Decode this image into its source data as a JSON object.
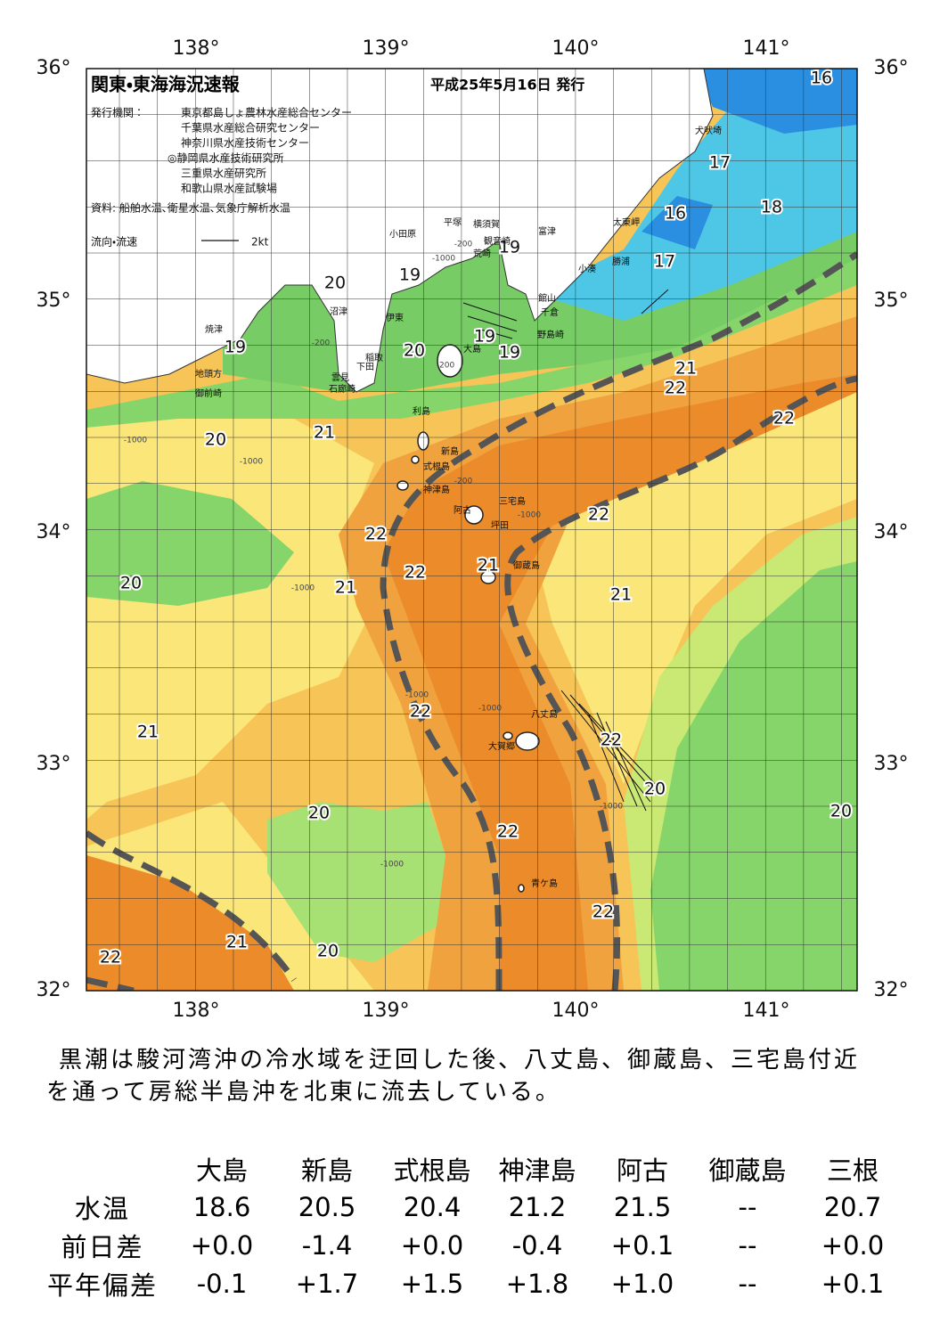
{
  "map": {
    "title": "関東・東海海況速報",
    "date": "平成25年5月16日 発行",
    "publisher_label": "発行機関：",
    "publishers": [
      "東京都島しょ農林水産総合センター",
      "千葉県水産総合研究センター",
      "神奈川県水産技術センター",
      "◎静岡県水産技術研究所",
      "三重県水産研究所",
      "和歌山県水産試験場"
    ],
    "source": "資料: 船舶水温､衛星水温､気象庁解析水温",
    "legend_label": "流向・流速",
    "legend_scale": "2kt",
    "lat_labels": [
      "36°",
      "35°",
      "34°",
      "33°",
      "32°"
    ],
    "lon_labels": [
      "138°",
      "139°",
      "140°",
      "141°"
    ],
    "temperature_labels": [
      "16",
      "17",
      "16",
      "18",
      "17",
      "19",
      "19",
      "20",
      "19",
      "20",
      "19",
      "19",
      "21",
      "22",
      "22",
      "21",
      "20",
      "22",
      "22",
      "22",
      "21",
      "21",
      "20",
      "21",
      "22",
      "21",
      "22",
      "20",
      "20",
      "20",
      "22",
      "22",
      "21",
      "22",
      "20"
    ],
    "depth_labels": [
      "-200",
      "-200",
      "-1000",
      "-200",
      "-1000",
      "-1000",
      "-200",
      "-1000",
      "-1000",
      "-1000",
      "-1000",
      "-1000",
      "-1000"
    ],
    "place_names": [
      "犬吠埼",
      "太東岬",
      "勝浦",
      "小湊",
      "富津",
      "平塚",
      "横須賀",
      "小田原",
      "観音崎",
      "荒崎",
      "館山",
      "千倉",
      "野島崎",
      "沼津",
      "伊東",
      "焼津",
      "稲取",
      "下田",
      "雲見",
      "石廊崎",
      "地頭方",
      "御前崎",
      "大島",
      "利島",
      "新島",
      "式根島",
      "神津島",
      "三宅島",
      "阿古",
      "坪田",
      "御蔵島",
      "八丈島",
      "大賀郷",
      "青ケ島"
    ]
  },
  "summary": [
    "黒潮は駿河湾沖の冷水域を迂回した後、八丈島、御蔵島、三宅島付近",
    "を通って房総半島沖を北東に流去している。"
  ],
  "table": {
    "columns": [
      "大島",
      "新島",
      "式根島",
      "神津島",
      "阿古",
      "御蔵島",
      "三根"
    ],
    "rows": [
      {
        "label": "水温",
        "values": [
          "18.6",
          "20.5",
          "20.4",
          "21.2",
          "21.5",
          "--",
          "20.7"
        ]
      },
      {
        "label": "前日差",
        "values": [
          "+0.0",
          "-1.4",
          "+0.0",
          "-0.4",
          "+0.1",
          "--",
          "+0.0"
        ]
      },
      {
        "label": "平年偏差",
        "values": [
          "-0.1",
          "+1.7",
          "+1.5",
          "+1.8",
          "+1.0",
          "--",
          "+0.1"
        ]
      }
    ]
  }
}
